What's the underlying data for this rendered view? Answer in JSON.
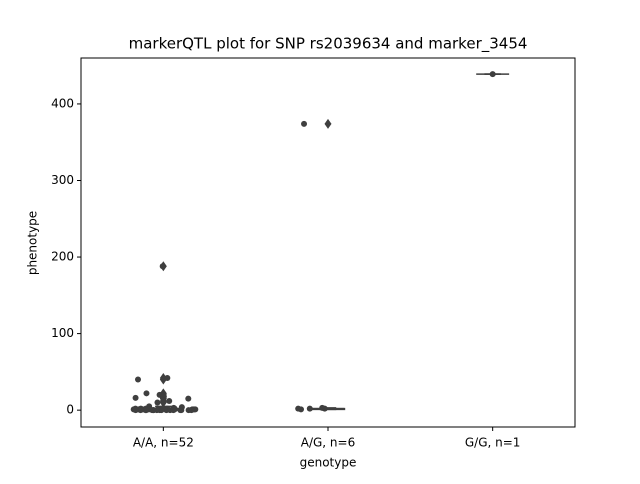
{
  "chart_data": {
    "type": "box-strip",
    "title": "markerQTL plot for SNP rs2039634 and marker_3454",
    "x_label": "genotype",
    "y_label": "phenotype",
    "categories": [
      "A/A, n=52",
      "A/G, n=6",
      "G/G, n=1"
    ],
    "ylim": [
      -22,
      460
    ],
    "yticks": [
      0,
      100,
      200,
      300,
      400
    ],
    "color": "#3f3f3f",
    "boxes": [
      {
        "whisker_low": 0,
        "q1": 0,
        "median": 1,
        "q3": 2,
        "whisker_high": 5,
        "outliers": [
          188,
          42,
          40,
          22,
          20,
          18,
          16,
          15,
          12,
          10
        ]
      },
      {
        "whisker_low": 1,
        "q1": 1,
        "median": 2,
        "q3": 2,
        "whisker_high": 3,
        "outliers": [
          374
        ]
      },
      {
        "whisker_low": 439,
        "q1": 439,
        "median": 439,
        "q3": 439,
        "whisker_high": 439,
        "outliers": []
      }
    ],
    "points": [
      [
        188,
        42,
        40,
        22,
        20,
        18,
        16,
        15,
        12,
        10,
        5,
        4,
        3,
        2,
        2,
        2,
        2,
        2,
        2,
        2,
        1,
        1,
        1,
        1,
        1,
        1,
        1,
        1,
        1,
        1,
        1,
        1,
        1,
        1,
        0,
        0,
        0,
        0,
        0,
        0,
        0,
        0,
        0,
        0,
        0,
        0,
        0,
        0,
        0,
        0,
        0,
        0
      ],
      [
        374,
        2,
        2,
        1,
        2,
        3
      ],
      [
        439
      ]
    ]
  }
}
